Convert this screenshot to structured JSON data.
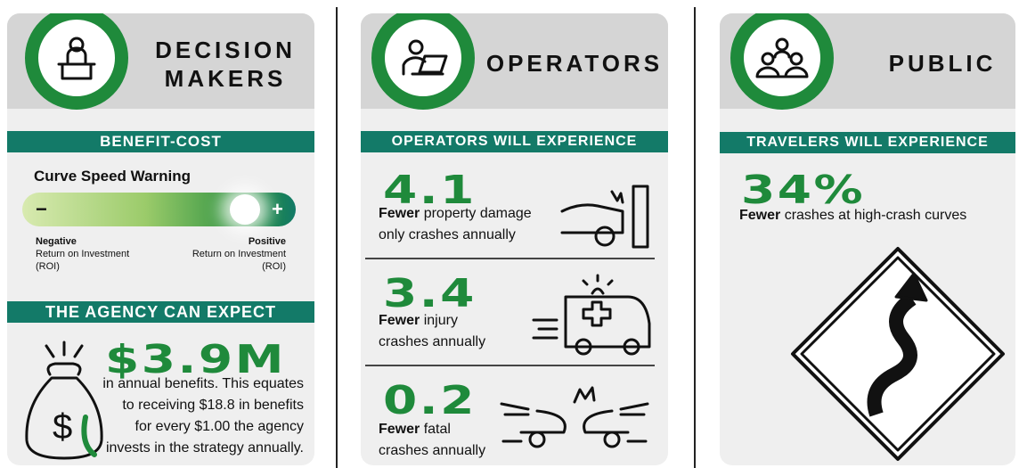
{
  "panels": [
    {
      "header": [
        "DECISION",
        "MAKERS"
      ],
      "sections": [
        {
          "title": "BENEFIT-COST",
          "subtitle": "Curve Speed Warning",
          "slider": {
            "minus": "−",
            "plus": "+"
          },
          "negative": {
            "label": "Negative",
            "text": [
              "Return on Investment",
              "(ROI)"
            ]
          },
          "positive": {
            "label": "Positive",
            "text": [
              "Return on Investment",
              "(ROI)"
            ]
          }
        },
        {
          "title": "THE AGENCY CAN EXPECT",
          "value": "$3.9M",
          "lines": [
            "in annual benefits. This equates",
            "to receiving $18.8 in benefits",
            "for every $1.00 the agency",
            "invests in the strategy annually."
          ]
        }
      ]
    },
    {
      "header": [
        "OPERATORS"
      ],
      "title": "OPERATORS WILL EXPERIENCE",
      "stats": [
        {
          "value": "4.1",
          "bold": "Fewer",
          "first": "property damage",
          "rest": "only crashes annually"
        },
        {
          "value": "3.4",
          "bold": "Fewer",
          "first": "injury",
          "rest": "crashes annually"
        },
        {
          "value": "0.2",
          "bold": "Fewer",
          "first": "fatal",
          "rest": "crashes annually"
        }
      ]
    },
    {
      "header": [
        "PUBLIC"
      ],
      "title": "TRAVELERS WILL EXPERIENCE",
      "stat": {
        "value": "34%",
        "bold": "Fewer",
        "first": "crashes at high-crash curves"
      }
    }
  ]
}
